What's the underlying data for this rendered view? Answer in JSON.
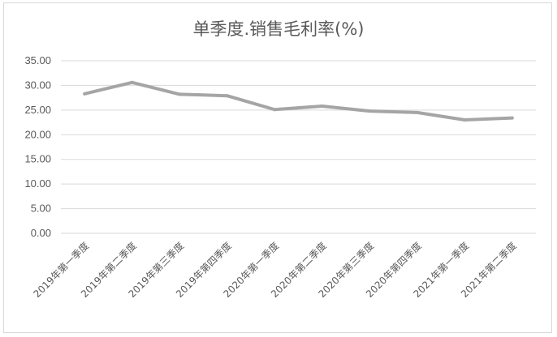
{
  "chart_data": {
    "type": "line",
    "title": "单季度.销售毛利率(%)",
    "categories": [
      "2019年第一季度",
      "2019年第二季度",
      "2019年第三季度",
      "2019年第四季度",
      "2020年第一季度",
      "2020年第二季度",
      "2020年第三季度",
      "2020年第四季度",
      "2021年第一季度",
      "2021年第二季度"
    ],
    "series": [
      {
        "values": [
          28.3,
          30.6,
          28.2,
          27.9,
          25.1,
          25.8,
          24.8,
          24.5,
          23.0,
          23.4
        ]
      }
    ],
    "ylim": [
      0,
      35
    ],
    "yticks": [
      "0.00",
      "5.00",
      "10.00",
      "15.00",
      "20.00",
      "25.00",
      "30.00",
      "35.00"
    ],
    "grid": true,
    "legend": "none",
    "colors": {
      "line": "#a5a5a5",
      "grid": "#d9d9d9",
      "text": "#595959"
    }
  }
}
